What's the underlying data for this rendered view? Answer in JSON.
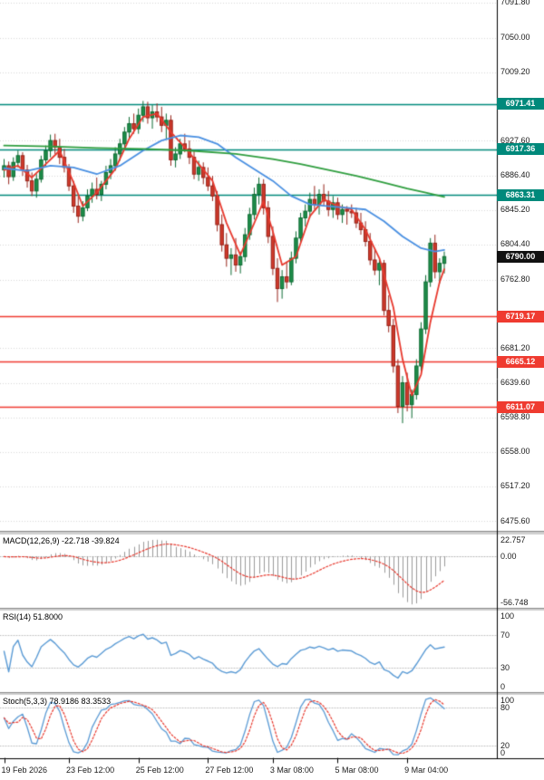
{
  "chart_data": {
    "type": "candlestick",
    "y_range": [
      6464,
      7095
    ],
    "grid_color": "#d9d9d9",
    "candle_colors": {
      "up": "#1f8e4a",
      "up_border": "#0d6b33",
      "down": "#cf392b",
      "down_border": "#97251b"
    },
    "ohlc": [
      [
        6893,
        6906,
        6884,
        6898
      ],
      [
        6898,
        6903,
        6876,
        6885
      ],
      [
        6885,
        6908,
        6880,
        6902
      ],
      [
        6902,
        6916,
        6896,
        6910
      ],
      [
        6910,
        6914,
        6886,
        6893
      ],
      [
        6893,
        6899,
        6872,
        6880
      ],
      [
        6880,
        6890,
        6862,
        6868
      ],
      [
        6868,
        6888,
        6860,
        6882
      ],
      [
        6882,
        6910,
        6878,
        6905
      ],
      [
        6905,
        6922,
        6898,
        6916
      ],
      [
        6916,
        6935,
        6908,
        6928
      ],
      [
        6928,
        6936,
        6912,
        6920
      ],
      [
        6920,
        6930,
        6900,
        6908
      ],
      [
        6908,
        6918,
        6890,
        6896
      ],
      [
        6896,
        6900,
        6868,
        6874
      ],
      [
        6874,
        6880,
        6842,
        6850
      ],
      [
        6850,
        6862,
        6830,
        6838
      ],
      [
        6838,
        6856,
        6832,
        6848
      ],
      [
        6848,
        6870,
        6844,
        6862
      ],
      [
        6862,
        6878,
        6854,
        6870
      ],
      [
        6870,
        6884,
        6858,
        6864
      ],
      [
        6864,
        6880,
        6856,
        6876
      ],
      [
        6876,
        6898,
        6870,
        6890
      ],
      [
        6890,
        6906,
        6882,
        6898
      ],
      [
        6898,
        6920,
        6892,
        6912
      ],
      [
        6912,
        6930,
        6904,
        6924
      ],
      [
        6924,
        6944,
        6918,
        6938
      ],
      [
        6938,
        6956,
        6930,
        6948
      ],
      [
        6948,
        6960,
        6936,
        6942
      ],
      [
        6942,
        6966,
        6936,
        6958
      ],
      [
        6958,
        6975,
        6950,
        6968
      ],
      [
        6968,
        6974,
        6948,
        6955
      ],
      [
        6955,
        6970,
        6942,
        6962
      ],
      [
        6962,
        6972,
        6950,
        6956
      ],
      [
        6956,
        6968,
        6938,
        6946
      ],
      [
        6946,
        6960,
        6930,
        6952
      ],
      [
        6952,
        6958,
        6898,
        6905
      ],
      [
        6905,
        6920,
        6896,
        6912
      ],
      [
        6912,
        6930,
        6906,
        6924
      ],
      [
        6924,
        6936,
        6914,
        6918
      ],
      [
        6918,
        6928,
        6900,
        6908
      ],
      [
        6908,
        6916,
        6882,
        6888
      ],
      [
        6888,
        6904,
        6880,
        6896
      ],
      [
        6896,
        6902,
        6876,
        6884
      ],
      [
        6884,
        6896,
        6868,
        6874
      ],
      [
        6874,
        6886,
        6856,
        6862
      ],
      [
        6862,
        6868,
        6820,
        6828
      ],
      [
        6828,
        6840,
        6796,
        6804
      ],
      [
        6804,
        6818,
        6778,
        6788
      ],
      [
        6788,
        6800,
        6768,
        6792
      ],
      [
        6792,
        6812,
        6772,
        6780
      ],
      [
        6780,
        6796,
        6770,
        6790
      ],
      [
        6790,
        6824,
        6784,
        6816
      ],
      [
        6816,
        6848,
        6810,
        6840
      ],
      [
        6840,
        6872,
        6834,
        6864
      ],
      [
        6864,
        6884,
        6852,
        6876
      ],
      [
        6876,
        6882,
        6840,
        6848
      ],
      [
        6848,
        6856,
        6806,
        6814
      ],
      [
        6814,
        6826,
        6768,
        6776
      ],
      [
        6776,
        6788,
        6736,
        6752
      ],
      [
        6752,
        6774,
        6740,
        6766
      ],
      [
        6766,
        6784,
        6752,
        6760
      ],
      [
        6760,
        6796,
        6756,
        6788
      ],
      [
        6788,
        6820,
        6782,
        6812
      ],
      [
        6812,
        6842,
        6806,
        6836
      ],
      [
        6836,
        6852,
        6826,
        6844
      ],
      [
        6844,
        6866,
        6836,
        6858
      ],
      [
        6858,
        6874,
        6846,
        6852
      ],
      [
        6852,
        6870,
        6840,
        6864
      ],
      [
        6864,
        6876,
        6850,
        6856
      ],
      [
        6856,
        6868,
        6838,
        6846
      ],
      [
        6846,
        6862,
        6836,
        6854
      ],
      [
        6854,
        6860,
        6834,
        6840
      ],
      [
        6840,
        6852,
        6830,
        6846
      ],
      [
        6846,
        6850,
        6828,
        6844
      ],
      [
        6844,
        6852,
        6836,
        6842
      ],
      [
        6842,
        6848,
        6824,
        6830
      ],
      [
        6830,
        6842,
        6816,
        6822
      ],
      [
        6822,
        6832,
        6802,
        6808
      ],
      [
        6808,
        6818,
        6780,
        6786
      ],
      [
        6786,
        6800,
        6768,
        6774
      ],
      [
        6774,
        6788,
        6756,
        6782
      ],
      [
        6782,
        6786,
        6720,
        6726
      ],
      [
        6726,
        6744,
        6700,
        6708
      ],
      [
        6708,
        6716,
        6652,
        6660
      ],
      [
        6660,
        6668,
        6604,
        6612
      ],
      [
        6612,
        6648,
        6592,
        6640
      ],
      [
        6640,
        6652,
        6606,
        6614
      ],
      [
        6614,
        6632,
        6598,
        6626
      ],
      [
        6626,
        6668,
        6620,
        6660
      ],
      [
        6660,
        6712,
        6654,
        6704
      ],
      [
        6704,
        6768,
        6698,
        6760
      ],
      [
        6760,
        6812,
        6754,
        6806
      ],
      [
        6806,
        6816,
        6764,
        6772
      ],
      [
        6772,
        6788,
        6758,
        6782
      ],
      [
        6782,
        6796,
        6770,
        6790
      ]
    ],
    "moving_averages": [
      {
        "name": "fast-ma",
        "color": "#e8392e",
        "points": [
          [
            0,
            6893
          ],
          [
            3,
            6898
          ],
          [
            6,
            6884
          ],
          [
            9,
            6900
          ],
          [
            12,
            6916
          ],
          [
            15,
            6878
          ],
          [
            17,
            6850
          ],
          [
            20,
            6866
          ],
          [
            24,
            6894
          ],
          [
            27,
            6930
          ],
          [
            30,
            6956
          ],
          [
            33,
            6960
          ],
          [
            36,
            6938
          ],
          [
            39,
            6920
          ],
          [
            42,
            6900
          ],
          [
            45,
            6880
          ],
          [
            48,
            6830
          ],
          [
            51,
            6792
          ],
          [
            54,
            6830
          ],
          [
            56,
            6856
          ],
          [
            58,
            6820
          ],
          [
            60,
            6780
          ],
          [
            63,
            6790
          ],
          [
            66,
            6838
          ],
          [
            69,
            6858
          ],
          [
            72,
            6850
          ],
          [
            75,
            6846
          ],
          [
            78,
            6822
          ],
          [
            81,
            6788
          ],
          [
            84,
            6730
          ],
          [
            86,
            6668
          ],
          [
            88,
            6625
          ],
          [
            90,
            6650
          ],
          [
            92,
            6712
          ],
          [
            94,
            6760
          ],
          [
            95,
            6775
          ]
        ]
      },
      {
        "name": "mid-ma",
        "color": "#4a90e2",
        "points": [
          [
            0,
            6895
          ],
          [
            5,
            6892
          ],
          [
            10,
            6898
          ],
          [
            15,
            6896
          ],
          [
            20,
            6888
          ],
          [
            25,
            6898
          ],
          [
            30,
            6916
          ],
          [
            34,
            6928
          ],
          [
            38,
            6934
          ],
          [
            42,
            6932
          ],
          [
            46,
            6924
          ],
          [
            50,
            6908
          ],
          [
            54,
            6894
          ],
          [
            58,
            6880
          ],
          [
            62,
            6862
          ],
          [
            66,
            6852
          ],
          [
            70,
            6850
          ],
          [
            74,
            6848
          ],
          [
            78,
            6846
          ],
          [
            82,
            6832
          ],
          [
            86,
            6814
          ],
          [
            90,
            6800
          ],
          [
            93,
            6796
          ],
          [
            95,
            6798
          ]
        ]
      },
      {
        "name": "slow-ma",
        "color": "#2f9e3f",
        "points": [
          [
            0,
            6922
          ],
          [
            10,
            6921
          ],
          [
            20,
            6919
          ],
          [
            30,
            6918
          ],
          [
            40,
            6916
          ],
          [
            50,
            6912
          ],
          [
            58,
            6906
          ],
          [
            64,
            6900
          ],
          [
            70,
            6893
          ],
          [
            76,
            6886
          ],
          [
            82,
            6878
          ],
          [
            87,
            6871
          ],
          [
            91,
            6866
          ],
          [
            95,
            6861
          ]
        ]
      }
    ],
    "levels": {
      "resistance_color": "#00897b",
      "support_color": "#ef3b30",
      "resistance": [
        {
          "label": "6971.41",
          "price": 6971.41
        },
        {
          "label": "6917.36",
          "price": 6917.36
        },
        {
          "label": "6863.31",
          "price": 6863.31
        }
      ],
      "support": [
        {
          "label": "6719.17",
          "price": 6719.17
        },
        {
          "label": "6665.12",
          "price": 6665.12
        },
        {
          "label": "6611.07",
          "price": 6611.07
        }
      ]
    },
    "current_price": {
      "label": "6790.00",
      "price": 6790.0,
      "badge_color": "#111111"
    },
    "price_axis": {
      "labels": [
        {
          "text": "7091.80",
          "price": 7091.8
        },
        {
          "text": "7050.00",
          "price": 7050.0
        },
        {
          "text": "7009.20",
          "price": 7009.2
        },
        {
          "text": "6927.60",
          "price": 6927.6
        },
        {
          "text": "6886.40",
          "price": 6886.4
        },
        {
          "text": "6845.20",
          "price": 6845.2
        },
        {
          "text": "6804.40",
          "price": 6804.4
        },
        {
          "text": "6762.80",
          "price": 6762.8
        },
        {
          "text": "6681.20",
          "price": 6681.2
        },
        {
          "text": "6639.60",
          "price": 6639.6
        },
        {
          "text": "6598.80",
          "price": 6598.8
        },
        {
          "text": "6558.00",
          "price": 6558.0
        },
        {
          "text": "6517.20",
          "price": 6517.2
        },
        {
          "text": "6475.60",
          "price": 6475.6
        }
      ]
    },
    "indicators": {
      "macd": {
        "label": "MACD(12,26,9) -22.718 -39.824",
        "params": [
          12,
          26,
          9
        ],
        "range": [
          22.757,
          -56.748
        ],
        "scale_labels": [
          {
            "text": "22.757",
            "value": 22.757
          },
          {
            "text": "0.00",
            "value": 0
          },
          {
            "text": "-56.748",
            "value": -56.748
          }
        ],
        "histogram_color": "#9a9a9a",
        "signal_color": "#e8392e",
        "current": {
          "macd": -22.718,
          "signal": -39.824
        }
      },
      "rsi": {
        "label": "RSI(14) 51.8000",
        "period": 14,
        "range": [
          0,
          100
        ],
        "guides": [
          70,
          30
        ],
        "scale_labels": [
          {
            "text": "100",
            "value": 100
          },
          {
            "text": "70",
            "value": 70
          },
          {
            "text": "30",
            "value": 30
          },
          {
            "text": "0",
            "value": 0
          }
        ],
        "line_color": "#5b9bd5",
        "current": 51.8
      },
      "stoch": {
        "label": "Stoch(5,3,3) 78.9186 83.3533",
        "params": [
          5,
          3,
          3
        ],
        "range": [
          0,
          100
        ],
        "guides": [
          80,
          20
        ],
        "scale_labels": [
          {
            "text": "100",
            "value": 100
          },
          {
            "text": "80",
            "value": 80
          },
          {
            "text": "20",
            "value": 20
          },
          {
            "text": "0",
            "value": 0
          }
        ],
        "k_color": "#5b9bd5",
        "d_color": "#e8392e",
        "current": {
          "k": 78.9186,
          "d": 83.3533
        }
      }
    },
    "time_axis": {
      "labels": [
        {
          "text": "19 Feb 2026",
          "bar": 0
        },
        {
          "text": "23 Feb 12:00",
          "bar": 14
        },
        {
          "text": "25 Feb 12:00",
          "bar": 29
        },
        {
          "text": "27 Feb 12:00",
          "bar": 44
        },
        {
          "text": "3 Mar 08:00",
          "bar": 58
        },
        {
          "text": "5 Mar 08:00",
          "bar": 72
        },
        {
          "text": "9 Mar 04:00",
          "bar": 87
        }
      ]
    }
  }
}
